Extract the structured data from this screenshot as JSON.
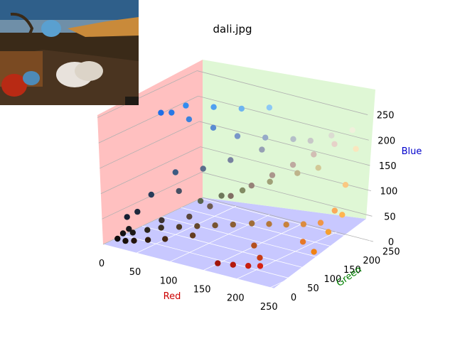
{
  "chart_data": {
    "type": "scatter",
    "title": "dali.jpg",
    "xlabel": "Red",
    "ylabel": "Green",
    "zlabel": "Blue",
    "xlim": [
      0,
      255
    ],
    "ylim": [
      0,
      255
    ],
    "zlim": [
      0,
      255
    ],
    "x_ticks": [
      "0",
      "50",
      "100",
      "150",
      "200",
      "250"
    ],
    "y_ticks": [
      "0",
      "50",
      "100",
      "150",
      "200",
      "250"
    ],
    "z_ticks": [
      "0",
      "50",
      "100",
      "150",
      "200",
      "250"
    ],
    "grid": true,
    "colors": {
      "red_axis": "#cc0000",
      "green_axis": "#008000",
      "blue_axis": "#0000cc",
      "red_pane": "#ffc0c0",
      "green_pane": "#dff7d5",
      "blue_pane": "#c8c8ff"
    },
    "marker_color": "rgb(red, green, blue) of each pixel",
    "series": [
      {
        "values": [
          [
            20,
            18,
            22
          ],
          [
            30,
            26,
            24
          ],
          [
            45,
            38,
            30
          ],
          [
            60,
            48,
            36
          ],
          [
            80,
            60,
            40
          ],
          [
            100,
            72,
            44
          ],
          [
            120,
            84,
            48
          ],
          [
            140,
            96,
            52
          ],
          [
            160,
            110,
            56
          ],
          [
            180,
            120,
            58
          ],
          [
            200,
            130,
            60
          ],
          [
            220,
            140,
            64
          ],
          [
            240,
            150,
            70
          ],
          [
            250,
            170,
            90
          ],
          [
            250,
            200,
            130
          ],
          [
            250,
            230,
            190
          ],
          [
            240,
            240,
            220
          ],
          [
            220,
            220,
            210
          ],
          [
            200,
            200,
            200
          ],
          [
            180,
            190,
            200
          ],
          [
            150,
            170,
            200
          ],
          [
            120,
            150,
            200
          ],
          [
            90,
            140,
            210
          ],
          [
            60,
            130,
            220
          ],
          [
            40,
            120,
            230
          ],
          [
            30,
            110,
            230
          ],
          [
            50,
            140,
            240
          ],
          [
            80,
            160,
            240
          ],
          [
            110,
            180,
            240
          ],
          [
            140,
            200,
            245
          ],
          [
            60,
            90,
            130
          ],
          [
            40,
            60,
            90
          ],
          [
            30,
            40,
            60
          ],
          [
            20,
            30,
            50
          ],
          [
            25,
            25,
            30
          ],
          [
            60,
            50,
            50
          ],
          [
            90,
            70,
            60
          ],
          [
            110,
            90,
            80
          ],
          [
            130,
            110,
            100
          ],
          [
            150,
            130,
            120
          ],
          [
            170,
            150,
            140
          ],
          [
            190,
            170,
            160
          ],
          [
            210,
            190,
            180
          ],
          [
            230,
            210,
            200
          ],
          [
            160,
            20,
            10
          ],
          [
            180,
            25,
            12
          ],
          [
            200,
            30,
            15
          ],
          [
            215,
            35,
            18
          ],
          [
            200,
            60,
            20
          ],
          [
            180,
            80,
            30
          ],
          [
            230,
            120,
            40
          ],
          [
            240,
            130,
            20
          ],
          [
            245,
            160,
            50
          ],
          [
            255,
            180,
            80
          ],
          [
            90,
            100,
            80
          ],
          [
            110,
            120,
            90
          ],
          [
            130,
            140,
            100
          ],
          [
            160,
            160,
            120
          ],
          [
            190,
            180,
            140
          ],
          [
            210,
            200,
            150
          ],
          [
            70,
            80,
            100
          ],
          [
            90,
            110,
            140
          ],
          [
            120,
            130,
            160
          ],
          [
            150,
            160,
            180
          ],
          [
            100,
            60,
            30
          ],
          [
            70,
            40,
            20
          ],
          [
            50,
            30,
            15
          ],
          [
            35,
            20,
            12
          ],
          [
            25,
            15,
            10
          ],
          [
            15,
            12,
            12
          ]
        ]
      }
    ]
  }
}
